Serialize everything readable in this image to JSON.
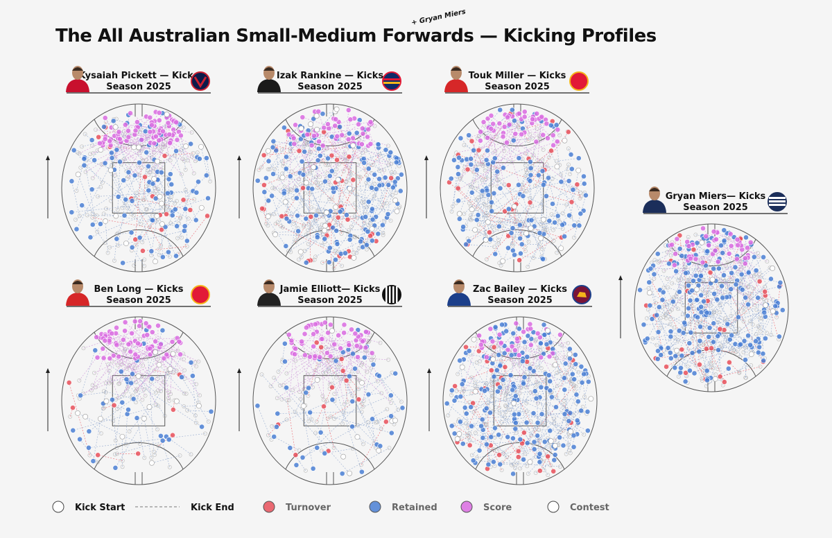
{
  "title": "The All Australian Small-Medium Forwards — Kicking Profiles",
  "annotation": "+ Gryan Miers",
  "colors": {
    "turnover": "#e8505b",
    "retained": "#4a7fd4",
    "score": "#d96be0",
    "contest": "#ffffff",
    "kick_start": "#ffffff",
    "line": "#666666",
    "background": "#f5f5f5"
  },
  "legend": [
    {
      "key": "kick_start",
      "label": "Kick Start",
      "color": "#ffffff",
      "text_color": "#111111"
    },
    {
      "key": "kick_end",
      "label": "Kick End",
      "color": "#777777",
      "text_color": "#111111"
    },
    {
      "key": "turnover",
      "label": "Turnover",
      "color": "#e8505b",
      "text_color": "#666666"
    },
    {
      "key": "retained",
      "label": "Retained",
      "color": "#4a7fd4",
      "text_color": "#666666"
    },
    {
      "key": "score",
      "label": "Score",
      "color": "#d96be0",
      "text_color": "#666666"
    },
    {
      "key": "contest",
      "label": "Contest",
      "color": "#ffffff",
      "text_color": "#666666"
    }
  ],
  "chart_data": [
    {
      "type": "scatter",
      "player": "Kysaiah Pickett — Kicks",
      "season": "Season 2025",
      "team_icon": "melbourne-icon",
      "counts": {
        "score": 70,
        "retained": 90,
        "turnover": 15,
        "contest": 20
      }
    },
    {
      "type": "scatter",
      "player": "Izak Rankine — Kicks",
      "season": "Season 2025",
      "team_icon": "adelaide-icon",
      "counts": {
        "score": 45,
        "retained": 140,
        "turnover": 35,
        "contest": 25
      }
    },
    {
      "type": "scatter",
      "player": "Touk Miller — Kicks",
      "season": "Season 2025",
      "team_icon": "gold-coast-icon",
      "counts": {
        "score": 45,
        "retained": 110,
        "turnover": 25,
        "contest": 15
      }
    },
    {
      "type": "scatter",
      "player": "Gryan Miers— Kicks",
      "season": "Season 2025",
      "team_icon": "geelong-icon",
      "counts": {
        "score": 40,
        "retained": 190,
        "turnover": 30,
        "contest": 10
      }
    },
    {
      "type": "scatter",
      "player": "Ben Long — Kicks",
      "season": "Season 2025",
      "team_icon": "st-kilda-icon",
      "counts": {
        "score": 65,
        "retained": 35,
        "turnover": 8,
        "contest": 15
      }
    },
    {
      "type": "scatter",
      "player": "Jamie Elliott— Kicks",
      "season": "Season 2025",
      "team_icon": "collingwood-icon",
      "counts": {
        "score": 55,
        "retained": 45,
        "turnover": 12,
        "contest": 10
      }
    },
    {
      "type": "scatter",
      "player": "Zac Bailey — Kicks",
      "season": "Season 2025",
      "team_icon": "brisbane-icon",
      "counts": {
        "score": 30,
        "retained": 170,
        "turnover": 30,
        "contest": 15
      }
    }
  ]
}
